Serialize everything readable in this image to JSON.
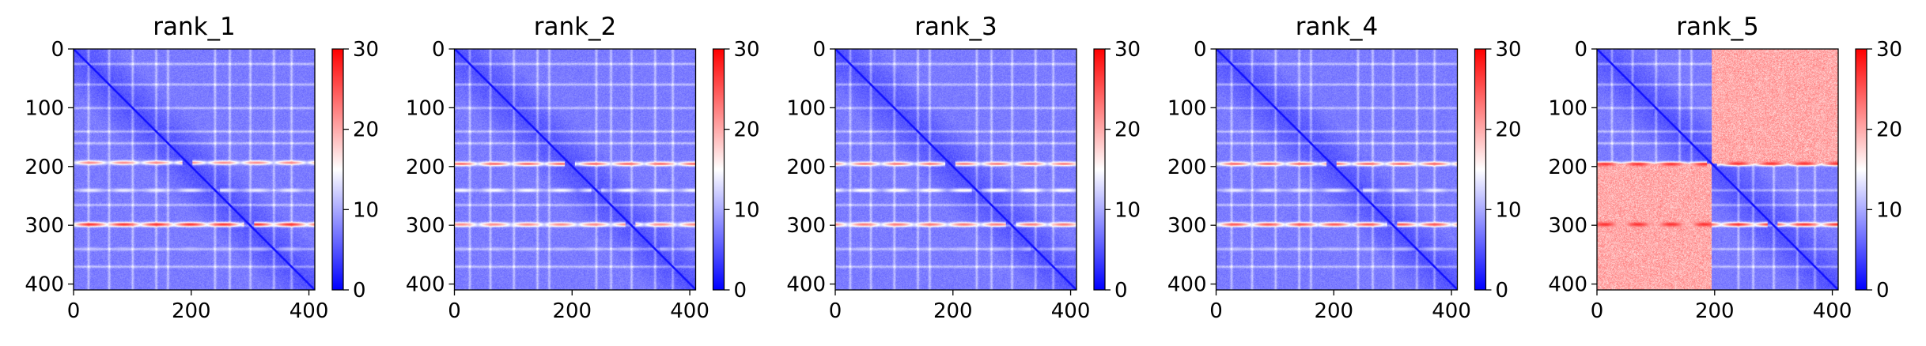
{
  "chart_data": {
    "type": "heatmap",
    "colormap": {
      "name": "bwr",
      "low": "#0000ff",
      "mid": "#ffffff",
      "high": "#ff0000"
    },
    "colorbar": {
      "range": [
        0,
        30
      ],
      "ticks": [
        0,
        10,
        20,
        30
      ]
    },
    "x_ticks": [
      0,
      200,
      400
    ],
    "y_ticks": [
      0,
      100,
      200,
      300,
      400
    ],
    "axis_range": {
      "x": [
        0,
        410
      ],
      "y": [
        410,
        0
      ]
    },
    "panels": [
      {
        "title": "rank_1",
        "size": 410,
        "pattern": "low",
        "bands": [
          {
            "row": 193,
            "value": 22
          },
          {
            "row": 298,
            "value": 27
          },
          {
            "row": 240,
            "value": 14
          },
          {
            "row": 340,
            "value": 11
          }
        ]
      },
      {
        "title": "rank_2",
        "size": 410,
        "pattern": "low",
        "bands": [
          {
            "row": 195,
            "value": 24
          },
          {
            "row": 298,
            "value": 22
          },
          {
            "row": 240,
            "value": 15
          },
          {
            "row": 340,
            "value": 11
          }
        ]
      },
      {
        "title": "rank_3",
        "size": 410,
        "pattern": "low",
        "bands": [
          {
            "row": 195,
            "value": 23
          },
          {
            "row": 298,
            "value": 23
          },
          {
            "row": 240,
            "value": 16
          },
          {
            "row": 340,
            "value": 11
          }
        ]
      },
      {
        "title": "rank_4",
        "size": 410,
        "pattern": "low",
        "bands": [
          {
            "row": 195,
            "value": 24
          },
          {
            "row": 298,
            "value": 25
          },
          {
            "row": 240,
            "value": 14
          },
          {
            "row": 340,
            "value": 11
          }
        ]
      },
      {
        "title": "rank_5",
        "size": 410,
        "pattern": "block",
        "block_split": 195,
        "off_diagonal_value": 20,
        "bands": [
          {
            "row": 195,
            "value": 27
          },
          {
            "row": 298,
            "value": 27
          }
        ]
      }
    ]
  }
}
